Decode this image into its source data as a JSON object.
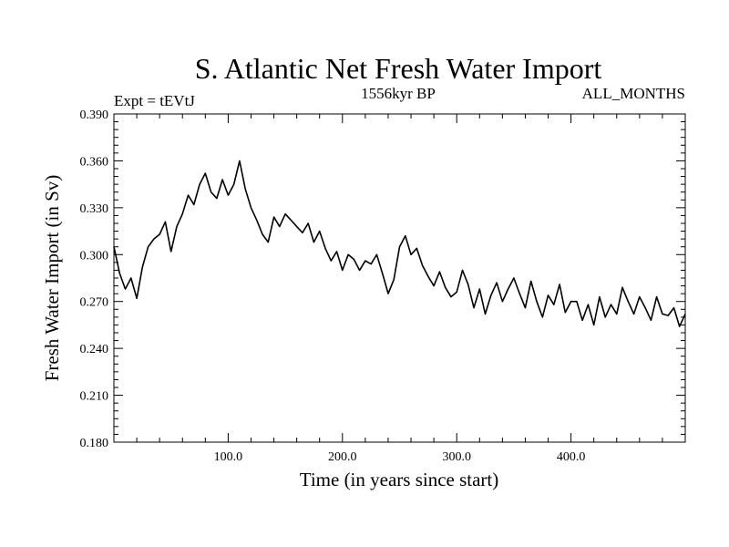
{
  "chart_data": {
    "type": "line",
    "title": "S. Atlantic Net Fresh Water Import",
    "subtitle_left": "Expt = tEVtJ",
    "subtitle_center": "1556kyr BP",
    "subtitle_right": "ALL_MONTHS",
    "xlabel": "Time (in years since start)",
    "ylabel": "Fresh Water Import (in Sv)",
    "xlim": [
      0,
      500
    ],
    "ylim": [
      0.18,
      0.39
    ],
    "xticks": [
      100,
      200,
      300,
      400
    ],
    "xtick_labels": [
      "100.0",
      "200.0",
      "300.0",
      "400.0"
    ],
    "yticks": [
      0.18,
      0.21,
      0.24,
      0.27,
      0.3,
      0.33,
      0.36,
      0.39
    ],
    "ytick_labels": [
      "0.180",
      "0.210",
      "0.240",
      "0.270",
      "0.300",
      "0.330",
      "0.360",
      "0.390"
    ],
    "series": [
      {
        "name": "net fresh water import",
        "color": "#000000",
        "x": [
          0,
          5,
          10,
          15,
          20,
          25,
          30,
          35,
          40,
          45,
          50,
          55,
          60,
          65,
          70,
          75,
          80,
          85,
          90,
          95,
          100,
          105,
          110,
          115,
          120,
          125,
          130,
          135,
          140,
          145,
          150,
          155,
          160,
          165,
          170,
          175,
          180,
          185,
          190,
          195,
          200,
          205,
          210,
          215,
          220,
          225,
          230,
          235,
          240,
          245,
          250,
          255,
          260,
          265,
          270,
          275,
          280,
          285,
          290,
          295,
          300,
          305,
          310,
          315,
          320,
          325,
          330,
          335,
          340,
          345,
          350,
          355,
          360,
          365,
          370,
          375,
          380,
          385,
          390,
          395,
          400,
          405,
          410,
          415,
          420,
          425,
          430,
          435,
          440,
          445,
          450,
          455,
          460,
          465,
          470,
          475,
          480,
          485,
          490,
          495,
          500
        ],
        "values": [
          0.305,
          0.288,
          0.278,
          0.285,
          0.272,
          0.292,
          0.305,
          0.31,
          0.313,
          0.321,
          0.302,
          0.318,
          0.326,
          0.338,
          0.332,
          0.345,
          0.352,
          0.34,
          0.336,
          0.348,
          0.338,
          0.345,
          0.36,
          0.342,
          0.33,
          0.322,
          0.313,
          0.308,
          0.324,
          0.318,
          0.326,
          0.322,
          0.318,
          0.314,
          0.32,
          0.308,
          0.315,
          0.304,
          0.296,
          0.302,
          0.29,
          0.3,
          0.297,
          0.29,
          0.296,
          0.294,
          0.3,
          0.288,
          0.275,
          0.284,
          0.305,
          0.312,
          0.3,
          0.304,
          0.293,
          0.286,
          0.28,
          0.289,
          0.279,
          0.273,
          0.276,
          0.29,
          0.281,
          0.266,
          0.278,
          0.262,
          0.274,
          0.282,
          0.27,
          0.278,
          0.285,
          0.275,
          0.266,
          0.283,
          0.27,
          0.26,
          0.274,
          0.268,
          0.281,
          0.263,
          0.27,
          0.27,
          0.258,
          0.268,
          0.255,
          0.273,
          0.26,
          0.268,
          0.262,
          0.279,
          0.27,
          0.262,
          0.273,
          0.266,
          0.258,
          0.273,
          0.262,
          0.261,
          0.266,
          0.254,
          0.262
        ]
      }
    ]
  }
}
